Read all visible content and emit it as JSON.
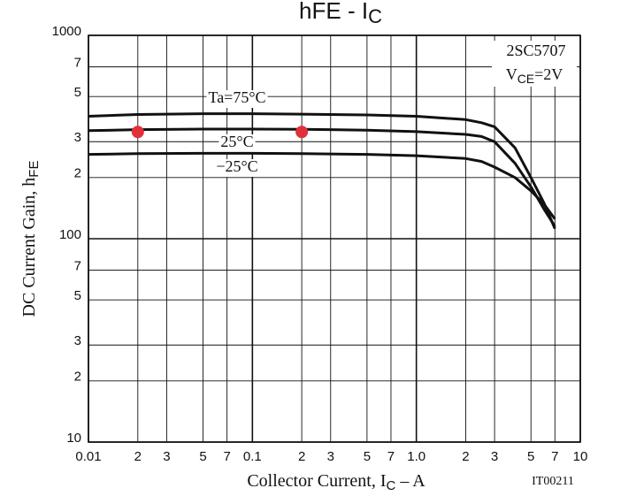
{
  "chart_data": {
    "type": "line",
    "title": [
      "h",
      "FE",
      " - I",
      "C"
    ],
    "xlabel": [
      "Collector Current, I",
      "C",
      " – A"
    ],
    "ylabel": [
      "DC Current Gain, h",
      "FE"
    ],
    "part_number": "2SC5707",
    "condition": [
      "V",
      "CE",
      "=2V"
    ],
    "figure_id": "IT00211",
    "log_x": true,
    "log_y": true,
    "grid": true,
    "x": [
      0.01,
      0.02,
      0.05,
      0.1,
      0.2,
      0.5,
      1,
      2,
      2.5,
      3,
      4,
      5,
      6,
      7
    ],
    "series": [
      {
        "name": "Ta=75°C",
        "color": "#111111",
        "values": [
          400,
          408,
          412,
          412,
          410,
          406,
          400,
          385,
          372,
          355,
          280,
          200,
          150,
          112
        ]
      },
      {
        "name": "25°C",
        "color": "#111111",
        "values": [
          340,
          344,
          346,
          346,
          345,
          342,
          336,
          326,
          318,
          300,
          235,
          180,
          140,
          115
        ]
      },
      {
        "name": "−25°C",
        "color": "#111111",
        "values": [
          260,
          262,
          263,
          263,
          262,
          260,
          256,
          248,
          240,
          225,
          200,
          172,
          148,
          125
        ]
      }
    ],
    "markers": {
      "color": "#e0303a",
      "x": [
        0.02,
        0.2
      ],
      "values": [
        335,
        335
      ]
    },
    "xlim": [
      0.01,
      10
    ],
    "ylim": [
      10,
      1000
    ],
    "xticks": [
      0.01,
      {
        "value": 0.02,
        "label": "2"
      },
      {
        "value": 0.03,
        "label": "3"
      },
      {
        "value": 0.05,
        "label": "5"
      },
      {
        "value": 0.07,
        "label": "7"
      },
      0.1,
      {
        "value": 0.2,
        "label": "2"
      },
      {
        "value": 0.3,
        "label": "3"
      },
      {
        "value": 0.5,
        "label": "5"
      },
      {
        "value": 0.7,
        "label": "7"
      },
      {
        "value": 1,
        "label": "1.0"
      },
      {
        "value": 2,
        "label": "2"
      },
      {
        "value": 3,
        "label": "3"
      },
      {
        "value": 5,
        "label": "5"
      },
      {
        "value": 7,
        "label": "7"
      },
      10
    ],
    "yticks": [
      1000,
      {
        "value": 700,
        "label": "7"
      },
      {
        "value": 500,
        "label": "5"
      },
      {
        "value": 300,
        "label": "3"
      },
      {
        "value": 200,
        "label": "2"
      },
      100,
      {
        "value": 70,
        "label": "7"
      },
      {
        "value": 50,
        "label": "5"
      },
      {
        "value": 30,
        "label": "3"
      },
      {
        "value": 20,
        "label": "2"
      },
      10
    ]
  }
}
